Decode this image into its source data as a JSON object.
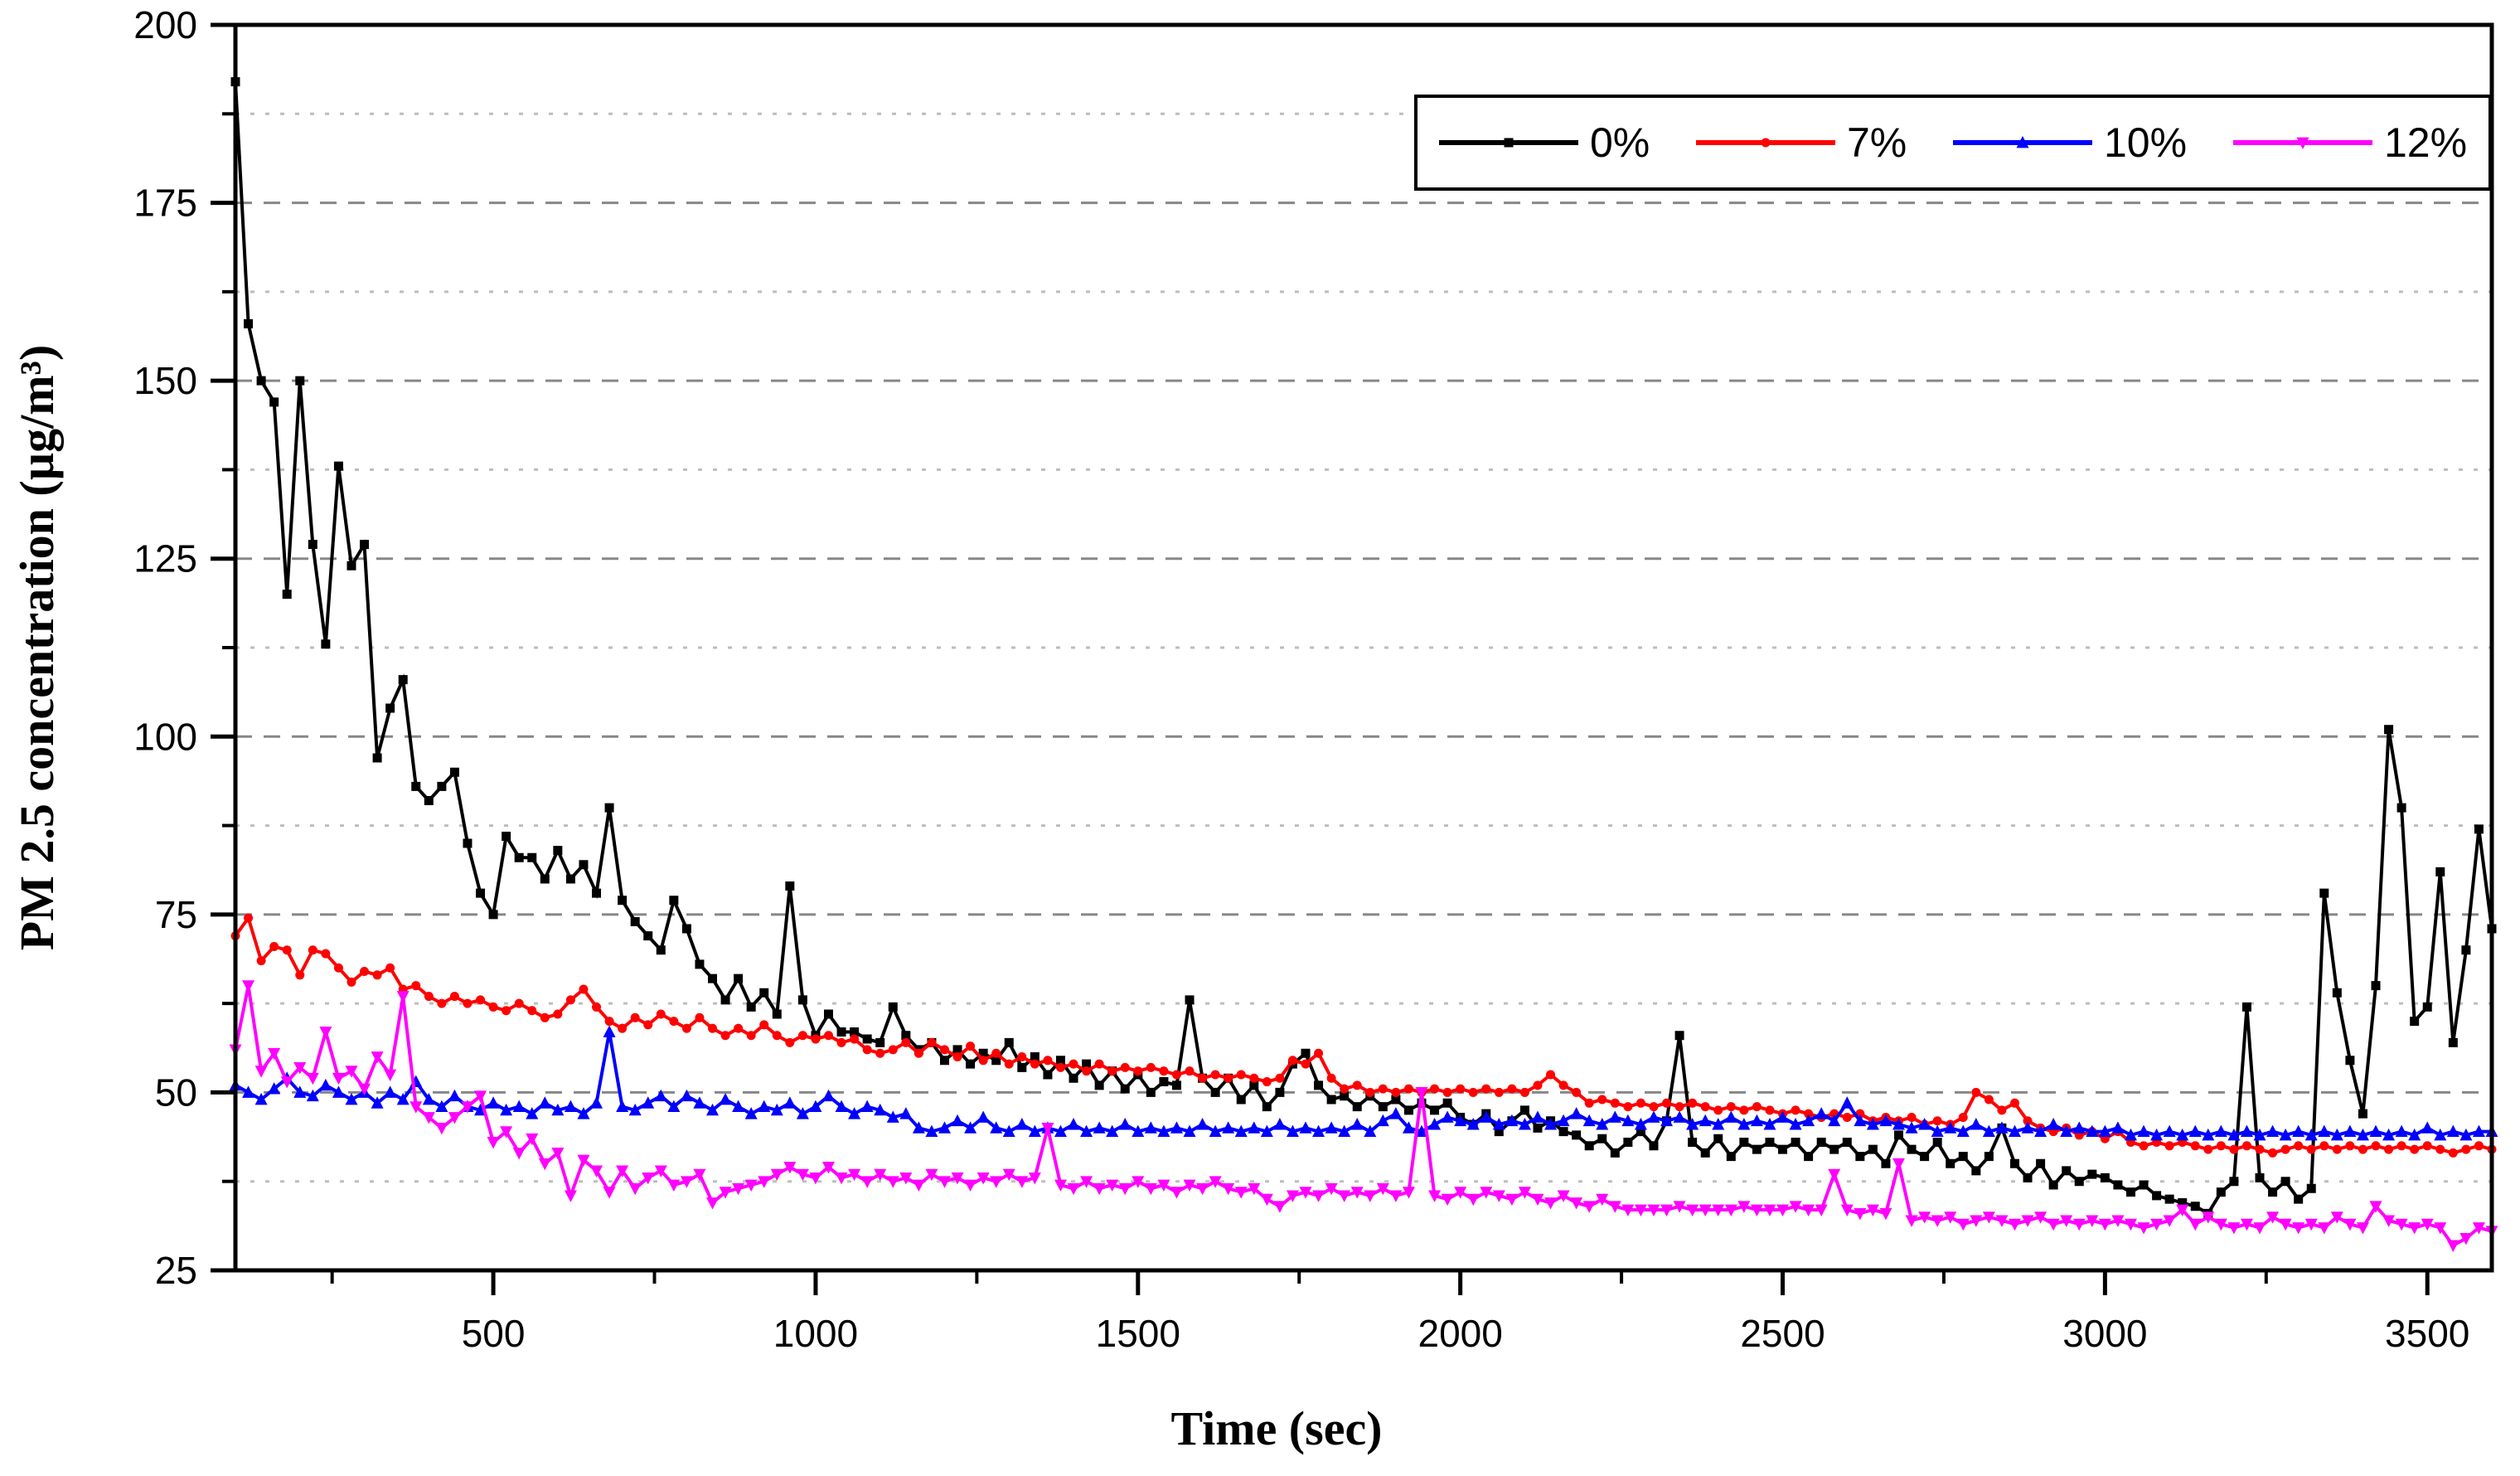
{
  "figure": {
    "background": "#ffffff"
  },
  "chart_data": {
    "type": "line",
    "title": "",
    "xlabel": "Time (sec)",
    "ylabel": "PM 2.5 concentration (µg/m³)",
    "xlim": [
      100,
      3600
    ],
    "ylim": [
      25,
      200
    ],
    "x_major_ticks": [
      500,
      1000,
      1500,
      2000,
      2500,
      3000,
      3500
    ],
    "x_minor_ticks": [
      250,
      750,
      1250,
      1750,
      2250,
      2750,
      3250
    ],
    "y_major_ticks": [
      25,
      50,
      75,
      100,
      125,
      150,
      175,
      200
    ],
    "y_minor_ticks": [
      37.5,
      62.5,
      87.5,
      112.5,
      137.5,
      162.5,
      187.5
    ],
    "grid": {
      "major_horizontal": "dashed",
      "minor_horizontal": "dotted",
      "vertical": "none"
    },
    "legend_position": "top-right",
    "t_start": 100,
    "t_step": 20,
    "series": [
      {
        "name": "0%",
        "color": "#000000",
        "marker": "square",
        "values": [
          192,
          158,
          150,
          147,
          120,
          150,
          127,
          113,
          138,
          124,
          127,
          97,
          104,
          108,
          93,
          91,
          93,
          95,
          85,
          78,
          75,
          86,
          83,
          83,
          80,
          84,
          80,
          82,
          78,
          90,
          77,
          74,
          72,
          70,
          77,
          73,
          68,
          66,
          63,
          66,
          62,
          64,
          61,
          79,
          63,
          58,
          61,
          58.5,
          58.5,
          57.5,
          57,
          62,
          58,
          56,
          57,
          54.5,
          56,
          54,
          55.5,
          54.5,
          57,
          53.5,
          55,
          52.5,
          54.5,
          52,
          54,
          51,
          53,
          50.5,
          52.5,
          50,
          51.5,
          51,
          63,
          52,
          50,
          52,
          49,
          51,
          48,
          50,
          54,
          55.5,
          51,
          49,
          49.5,
          48,
          49.5,
          48,
          49,
          47.5,
          48.5,
          47.5,
          48.5,
          46.5,
          45.5,
          47,
          44.5,
          46,
          47.5,
          45,
          46,
          44.5,
          44,
          42.5,
          43.5,
          41.5,
          43,
          44.5,
          42.5,
          46,
          58,
          43,
          41.5,
          43.5,
          41,
          43,
          42,
          43,
          42,
          43,
          41,
          43,
          42,
          43,
          41,
          42,
          40,
          44,
          42,
          41,
          43,
          40,
          41,
          39,
          41,
          45,
          40,
          38,
          40,
          37,
          39,
          37.5,
          38.5,
          38,
          37,
          36,
          37,
          35.5,
          35,
          34.5,
          34,
          33,
          36,
          37.5,
          62,
          38,
          36,
          37.5,
          35,
          36.5,
          78,
          64,
          54.5,
          47,
          65,
          101,
          90,
          60,
          62,
          81,
          57,
          70,
          87,
          73
        ]
      },
      {
        "name": "7%",
        "color": "#ff0000",
        "marker": "circle",
        "values": [
          72,
          74.5,
          68.5,
          70.5,
          70,
          66.5,
          70,
          69.5,
          67.5,
          65.5,
          67,
          66.5,
          67.5,
          64.5,
          65,
          63.5,
          62.5,
          63.5,
          62.5,
          63,
          62,
          61.5,
          62.5,
          61.5,
          60.5,
          61,
          63,
          64.5,
          62,
          60,
          59,
          60.5,
          59.5,
          61,
          60,
          59,
          60.5,
          59,
          58,
          59,
          58,
          59.5,
          58,
          57,
          58,
          57.5,
          58,
          57,
          57.5,
          56,
          55.5,
          56,
          57,
          55.5,
          57,
          56,
          55,
          56.5,
          54.5,
          55.5,
          54,
          55,
          54,
          54.5,
          53.5,
          54,
          53,
          54,
          53,
          53.5,
          53,
          53.5,
          53,
          52.5,
          53,
          52,
          52.5,
          52,
          52.5,
          52,
          51.5,
          52,
          54.5,
          54,
          55.5,
          52,
          50.5,
          51,
          50,
          50.5,
          50,
          50.5,
          50,
          50.5,
          50,
          50.5,
          50,
          50.5,
          50,
          50.5,
          50,
          51,
          52.5,
          51,
          50,
          48.5,
          49,
          48.5,
          48,
          48.5,
          48,
          48.5,
          48,
          48.5,
          48,
          47.5,
          48,
          47.5,
          48,
          47.5,
          47,
          47.5,
          47,
          46.5,
          47,
          46.5,
          47,
          46,
          46.5,
          46,
          46.5,
          45.5,
          46,
          45.5,
          46.5,
          50,
          49,
          47.5,
          48.5,
          46,
          45,
          44.5,
          45,
          44,
          44.5,
          43.5,
          44.5,
          43,
          42.5,
          43,
          42.5,
          43,
          42.5,
          42,
          42.5,
          42,
          42.5,
          42,
          41.5,
          42,
          42.5,
          42,
          42.5,
          42,
          42.5,
          42,
          42.5,
          42,
          42.5,
          42,
          42.5,
          42,
          41.5,
          42,
          42.5,
          42
        ]
      },
      {
        "name": "10%",
        "color": "#0000ff",
        "marker": "triangle-up",
        "values": [
          51,
          50,
          49,
          50.5,
          52,
          50,
          49.5,
          51,
          50,
          49,
          50,
          48.5,
          50,
          49,
          51.5,
          49,
          48,
          49.5,
          48,
          47.5,
          48.5,
          47.5,
          48,
          47,
          48.5,
          47.5,
          48,
          47,
          48.5,
          58.5,
          48,
          47.5,
          48.5,
          49.5,
          48,
          49.5,
          48.5,
          47.5,
          49,
          48,
          47,
          48,
          47.5,
          48.5,
          47,
          48,
          49.5,
          48,
          47,
          48,
          47.5,
          46.5,
          47,
          45,
          44.5,
          45,
          46,
          45,
          46.5,
          45,
          44.5,
          45.5,
          44.5,
          45,
          44.5,
          45.5,
          44.5,
          45,
          44.5,
          45.5,
          44.5,
          45,
          44.5,
          45,
          44.5,
          45.5,
          44.5,
          45,
          44.5,
          45,
          44.5,
          45.5,
          44.5,
          45,
          44.5,
          45,
          44.5,
          45.5,
          44.5,
          46,
          47,
          45,
          44.5,
          45.5,
          46.5,
          46,
          45.5,
          46.5,
          45.5,
          46,
          45.5,
          46.5,
          45.5,
          46,
          47,
          46,
          45.5,
          46.5,
          46,
          45.5,
          46.5,
          46,
          46.5,
          45.5,
          46,
          45.5,
          46.5,
          45.5,
          46,
          45.5,
          46.5,
          45.5,
          46,
          47,
          46,
          48.5,
          46,
          45.5,
          46,
          45.5,
          45,
          45.5,
          44.5,
          45,
          44.5,
          45.5,
          44.5,
          45,
          44.5,
          45,
          44.5,
          45.5,
          44.5,
          45,
          44.5,
          44.5,
          45,
          44,
          44.5,
          44,
          44.5,
          44,
          44.5,
          44,
          44.5,
          44,
          44.5,
          44,
          44.5,
          44,
          44.5,
          44,
          44.5,
          44,
          44.5,
          44,
          44.5,
          44,
          44.5,
          44,
          45,
          44,
          44.5,
          44,
          44.5,
          44.5
        ]
      },
      {
        "name": "12%",
        "color": "#ff00ff",
        "marker": "triangle-down",
        "values": [
          56,
          65,
          53,
          55.5,
          51.5,
          53.5,
          52,
          58.5,
          52,
          53,
          50.5,
          55,
          52.5,
          63.5,
          48,
          46.5,
          45,
          46.5,
          48,
          49.5,
          43,
          44.5,
          41.5,
          43.5,
          40,
          41.5,
          35.5,
          40.5,
          39,
          36,
          39,
          36.5,
          38,
          39,
          37,
          37.5,
          38.5,
          34.5,
          36,
          36.5,
          37,
          37.5,
          38.5,
          39.5,
          38.5,
          38,
          39.5,
          38,
          38.5,
          37.5,
          38.5,
          37.5,
          38,
          37,
          38.5,
          37.5,
          38,
          37,
          38,
          37.5,
          38.5,
          37.5,
          38,
          45,
          37,
          36.5,
          37.5,
          36.5,
          37,
          36.5,
          37.5,
          36.5,
          37,
          36,
          37,
          36.5,
          37.5,
          36.5,
          36,
          36.5,
          35,
          34,
          35.5,
          36,
          35.5,
          36.5,
          35.5,
          36,
          35.5,
          36.5,
          35.5,
          36,
          50,
          35.5,
          35,
          36,
          35,
          36,
          35.5,
          35,
          36,
          35,
          34.5,
          35.5,
          34.5,
          34,
          35,
          34,
          33.5,
          33.5,
          33.5,
          33.5,
          34,
          33.5,
          33.5,
          33.5,
          33.5,
          34,
          33.5,
          33.5,
          33.5,
          34,
          33.5,
          33.5,
          38.5,
          33.5,
          33,
          33.5,
          33,
          40,
          32,
          32.5,
          32,
          32.5,
          31.5,
          32,
          32.5,
          32,
          31.5,
          32,
          32.5,
          31.5,
          32,
          31.5,
          32,
          31.5,
          32,
          31.5,
          31,
          31.5,
          32,
          33.5,
          31.5,
          32.5,
          31.5,
          31,
          31.5,
          31,
          32.5,
          31.5,
          31,
          31.5,
          31,
          32.5,
          31.5,
          31,
          34,
          32,
          31.5,
          31,
          31.5,
          31,
          28.5,
          29.5,
          31,
          30.5
        ]
      }
    ]
  }
}
